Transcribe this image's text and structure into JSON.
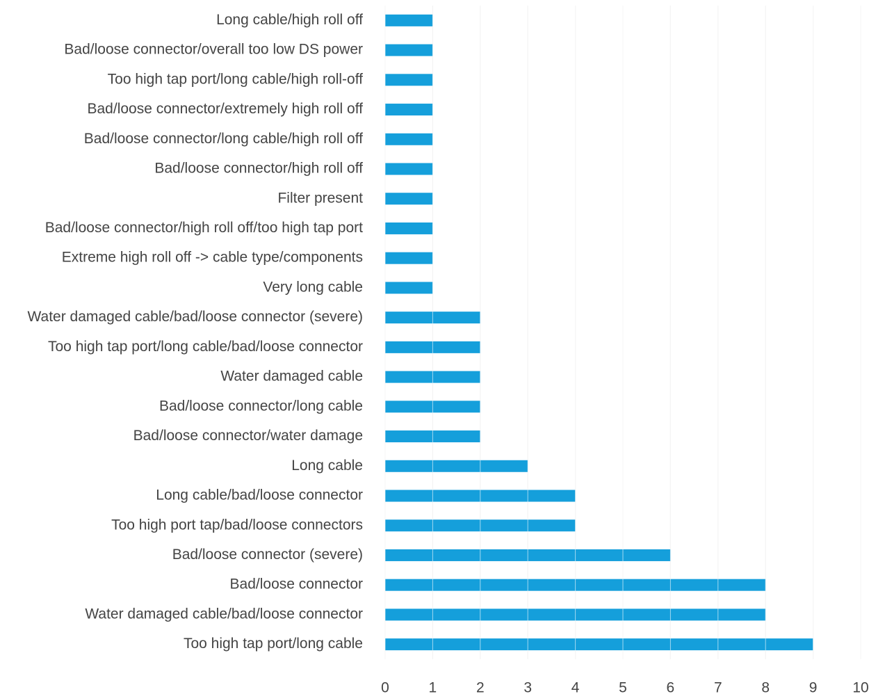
{
  "chart_data": {
    "type": "barh",
    "categories": [
      "Long cable/high roll off",
      "Bad/loose connector/overall too low DS power",
      "Too high tap port/long cable/high roll-off",
      "Bad/loose connector/extremely high roll off",
      "Bad/loose connector/long cable/high roll off",
      "Bad/loose connector/high roll off",
      "Filter present",
      "Bad/loose connector/high roll off/too high tap port",
      "Extreme high roll off -> cable type/components",
      "Very long cable",
      "Water damaged cable/bad/loose connector (severe)",
      "Too high tap port/long cable/bad/loose connector",
      "Water damaged cable",
      "Bad/loose connector/long cable",
      "Bad/loose connector/water damage",
      "Long cable",
      "Long cable/bad/loose connector",
      "Too high port tap/bad/loose connectors",
      "Bad/loose connector (severe)",
      "Bad/loose connector",
      "Water damaged cable/bad/loose connector",
      "Too high tap port/long cable"
    ],
    "values": [
      1,
      1,
      1,
      1,
      1,
      1,
      1,
      1,
      1,
      1,
      2,
      2,
      2,
      2,
      2,
      3,
      4,
      4,
      6,
      8,
      8,
      9
    ],
    "color": "#159fdb",
    "xlim": [
      0,
      10
    ],
    "xticks": [
      0,
      1,
      2,
      3,
      4,
      5,
      6,
      7,
      8,
      9,
      10
    ],
    "grid": true
  }
}
